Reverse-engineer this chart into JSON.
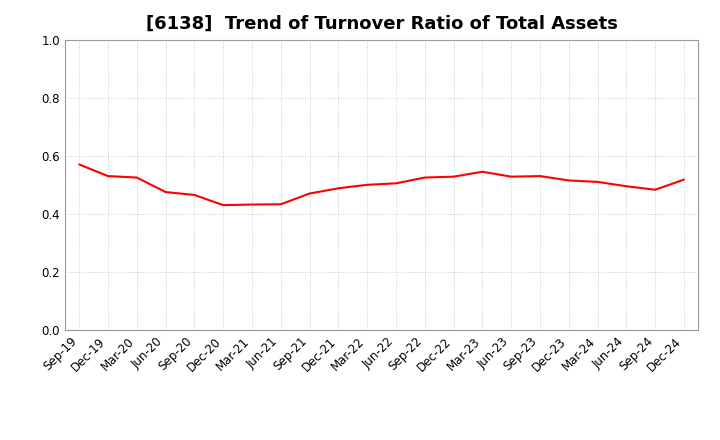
{
  "title": "[6138]  Trend of Turnover Ratio of Total Assets",
  "labels": [
    "Sep-19",
    "Dec-19",
    "Mar-20",
    "Jun-20",
    "Sep-20",
    "Dec-20",
    "Mar-21",
    "Jun-21",
    "Sep-21",
    "Dec-21",
    "Mar-22",
    "Jun-22",
    "Sep-22",
    "Dec-22",
    "Mar-23",
    "Jun-23",
    "Sep-23",
    "Dec-23",
    "Mar-24",
    "Jun-24",
    "Sep-24",
    "Dec-24"
  ],
  "values": [
    0.57,
    0.53,
    0.525,
    0.475,
    0.465,
    0.43,
    0.432,
    0.433,
    0.47,
    0.488,
    0.5,
    0.505,
    0.525,
    0.528,
    0.545,
    0.528,
    0.53,
    0.515,
    0.51,
    0.495,
    0.483,
    0.518
  ],
  "line_color": "#FF0000",
  "line_width": 1.5,
  "ylim": [
    0.0,
    1.0
  ],
  "yticks": [
    0.0,
    0.2,
    0.4,
    0.6,
    0.8,
    1.0
  ],
  "background_color": "#ffffff",
  "plot_bg_color": "#ffffff",
  "grid_color": "#bbbbbb",
  "title_fontsize": 13,
  "tick_fontsize": 8.5
}
